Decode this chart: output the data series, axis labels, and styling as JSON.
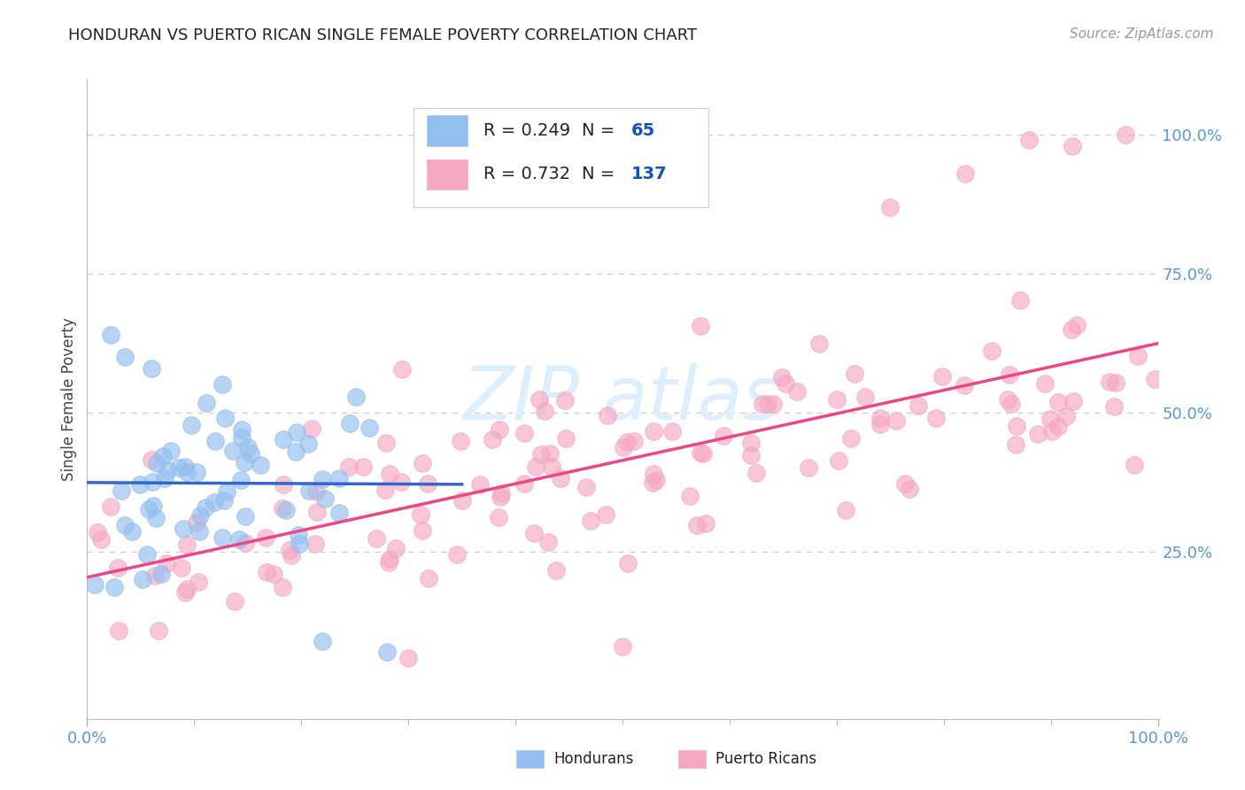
{
  "title": "HONDURAN VS PUERTO RICAN SINGLE FEMALE POVERTY CORRELATION CHART",
  "source": "Source: ZipAtlas.com",
  "ylabel": "Single Female Poverty",
  "legend_r_hon": "R = 0.249",
  "legend_n_hon": "N =  65",
  "legend_r_pr": "R = 0.732",
  "legend_n_pr": "N = 137",
  "honduran_color": "#92BEF0",
  "puerto_rican_color": "#F5A8C0",
  "line_honduran_color": "#3366CC",
  "line_puerto_rican_color": "#EE4488",
  "axis_tick_color": "#5599DD",
  "text_color": "#222222",
  "source_color": "#999999",
  "watermark_color": "#DDEEFF",
  "background_color": "#FFFFFF",
  "grid_color": "#CCCCCC",
  "legend_text_color": "#1155BB",
  "legend_r_text_color": "#222222",
  "seed": 99
}
